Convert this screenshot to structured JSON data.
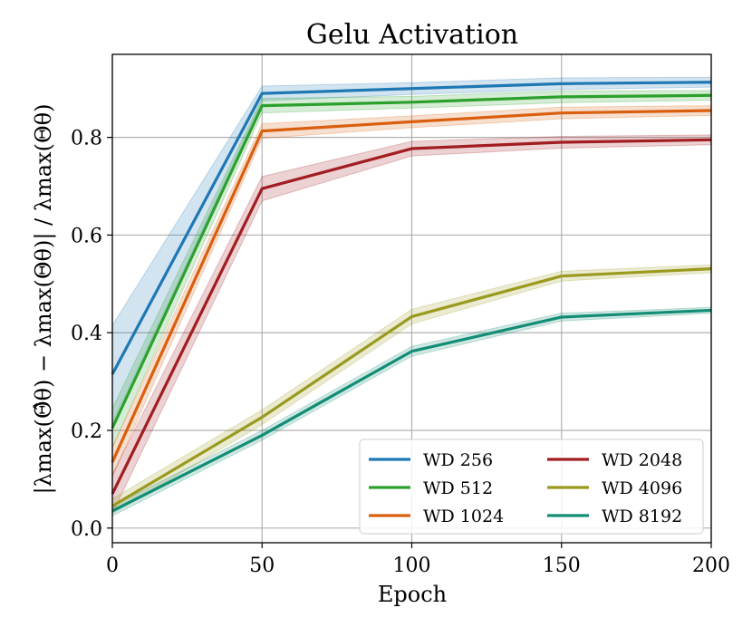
{
  "chart_data": {
    "type": "line",
    "title": "Gelu Activation",
    "xlabel": "Epoch",
    "ylabel": "|λmax(Θ̂θ) − λmax(Θθ)| / λmax(Θθ)",
    "xlim": [
      0,
      200
    ],
    "ylim": [
      -0.03,
      0.97
    ],
    "x": [
      0,
      50,
      100,
      150,
      200
    ],
    "xticks": [
      0,
      50,
      100,
      150,
      200
    ],
    "yticks": [
      0.0,
      0.2,
      0.4,
      0.6,
      0.8
    ],
    "xtick_labels": [
      "0",
      "50",
      "100",
      "150",
      "200"
    ],
    "ytick_labels": [
      "0.0",
      "0.2",
      "0.4",
      "0.6",
      "0.8"
    ],
    "grid": true,
    "legend_position": "lower-right",
    "legend_columns": 2,
    "series": [
      {
        "name": "WD 256",
        "color": "#1f77b4",
        "values": [
          0.315,
          0.89,
          0.9,
          0.91,
          0.913
        ],
        "band": [
          0.1,
          0.015,
          0.012,
          0.012,
          0.01
        ]
      },
      {
        "name": "WD 512",
        "color": "#2ca02c",
        "values": [
          0.205,
          0.865,
          0.872,
          0.883,
          0.886
        ],
        "band": [
          0.04,
          0.015,
          0.012,
          0.012,
          0.01
        ]
      },
      {
        "name": "WD 1024",
        "color": "#d95f0e",
        "values": [
          0.135,
          0.813,
          0.832,
          0.85,
          0.855
        ],
        "band": [
          0.03,
          0.015,
          0.012,
          0.012,
          0.01
        ]
      },
      {
        "name": "WD 2048",
        "color": "#a11d21",
        "values": [
          0.07,
          0.695,
          0.777,
          0.79,
          0.795
        ],
        "band": [
          0.04,
          0.025,
          0.015,
          0.012,
          0.01
        ]
      },
      {
        "name": "WD 4096",
        "color": "#9a9a1f",
        "values": [
          0.045,
          0.227,
          0.433,
          0.516,
          0.531
        ],
        "band": [
          0.015,
          0.015,
          0.015,
          0.01,
          0.008
        ]
      },
      {
        "name": "WD 8192",
        "color": "#138d75",
        "values": [
          0.035,
          0.19,
          0.362,
          0.432,
          0.446
        ],
        "band": [
          0.01,
          0.01,
          0.01,
          0.008,
          0.006
        ]
      }
    ]
  }
}
